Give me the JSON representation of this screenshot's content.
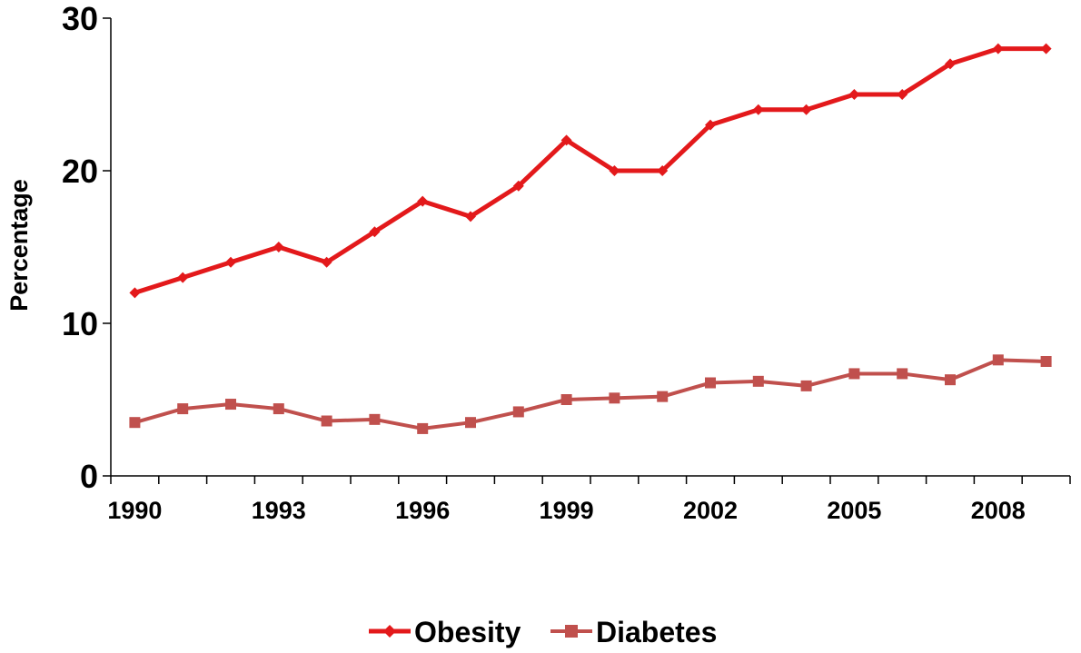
{
  "chart_data": {
    "type": "line",
    "title": "",
    "xlabel": "",
    "ylabel": "Percentage",
    "ylim": [
      0,
      30
    ],
    "yticks": [
      0,
      10,
      20,
      30
    ],
    "xlim": [
      1990,
      2009
    ],
    "xtick_labels": [
      "1990",
      "1993",
      "1996",
      "1999",
      "2002",
      "2005",
      "2008"
    ],
    "grid": false,
    "legend_position": "bottom-center",
    "x": [
      1990,
      1991,
      1992,
      1993,
      1994,
      1995,
      1996,
      1997,
      1998,
      1999,
      2000,
      2001,
      2002,
      2003,
      2004,
      2005,
      2006,
      2007,
      2008,
      2009
    ],
    "series": [
      {
        "name": "Obesity",
        "color": "#e3191b",
        "marker": "diamond",
        "values": [
          12,
          13,
          14,
          15,
          14,
          16,
          18,
          17,
          19,
          22,
          20,
          20,
          23,
          24,
          24,
          25,
          25,
          27,
          28,
          28
        ]
      },
      {
        "name": "Diabetes",
        "color": "#c0504d",
        "marker": "square",
        "values": [
          3.5,
          4.4,
          4.7,
          4.4,
          3.6,
          3.7,
          3.1,
          3.5,
          4.2,
          5.0,
          5.1,
          5.2,
          6.1,
          6.2,
          5.9,
          6.7,
          6.7,
          6.3,
          7.6,
          7.5
        ]
      }
    ]
  }
}
